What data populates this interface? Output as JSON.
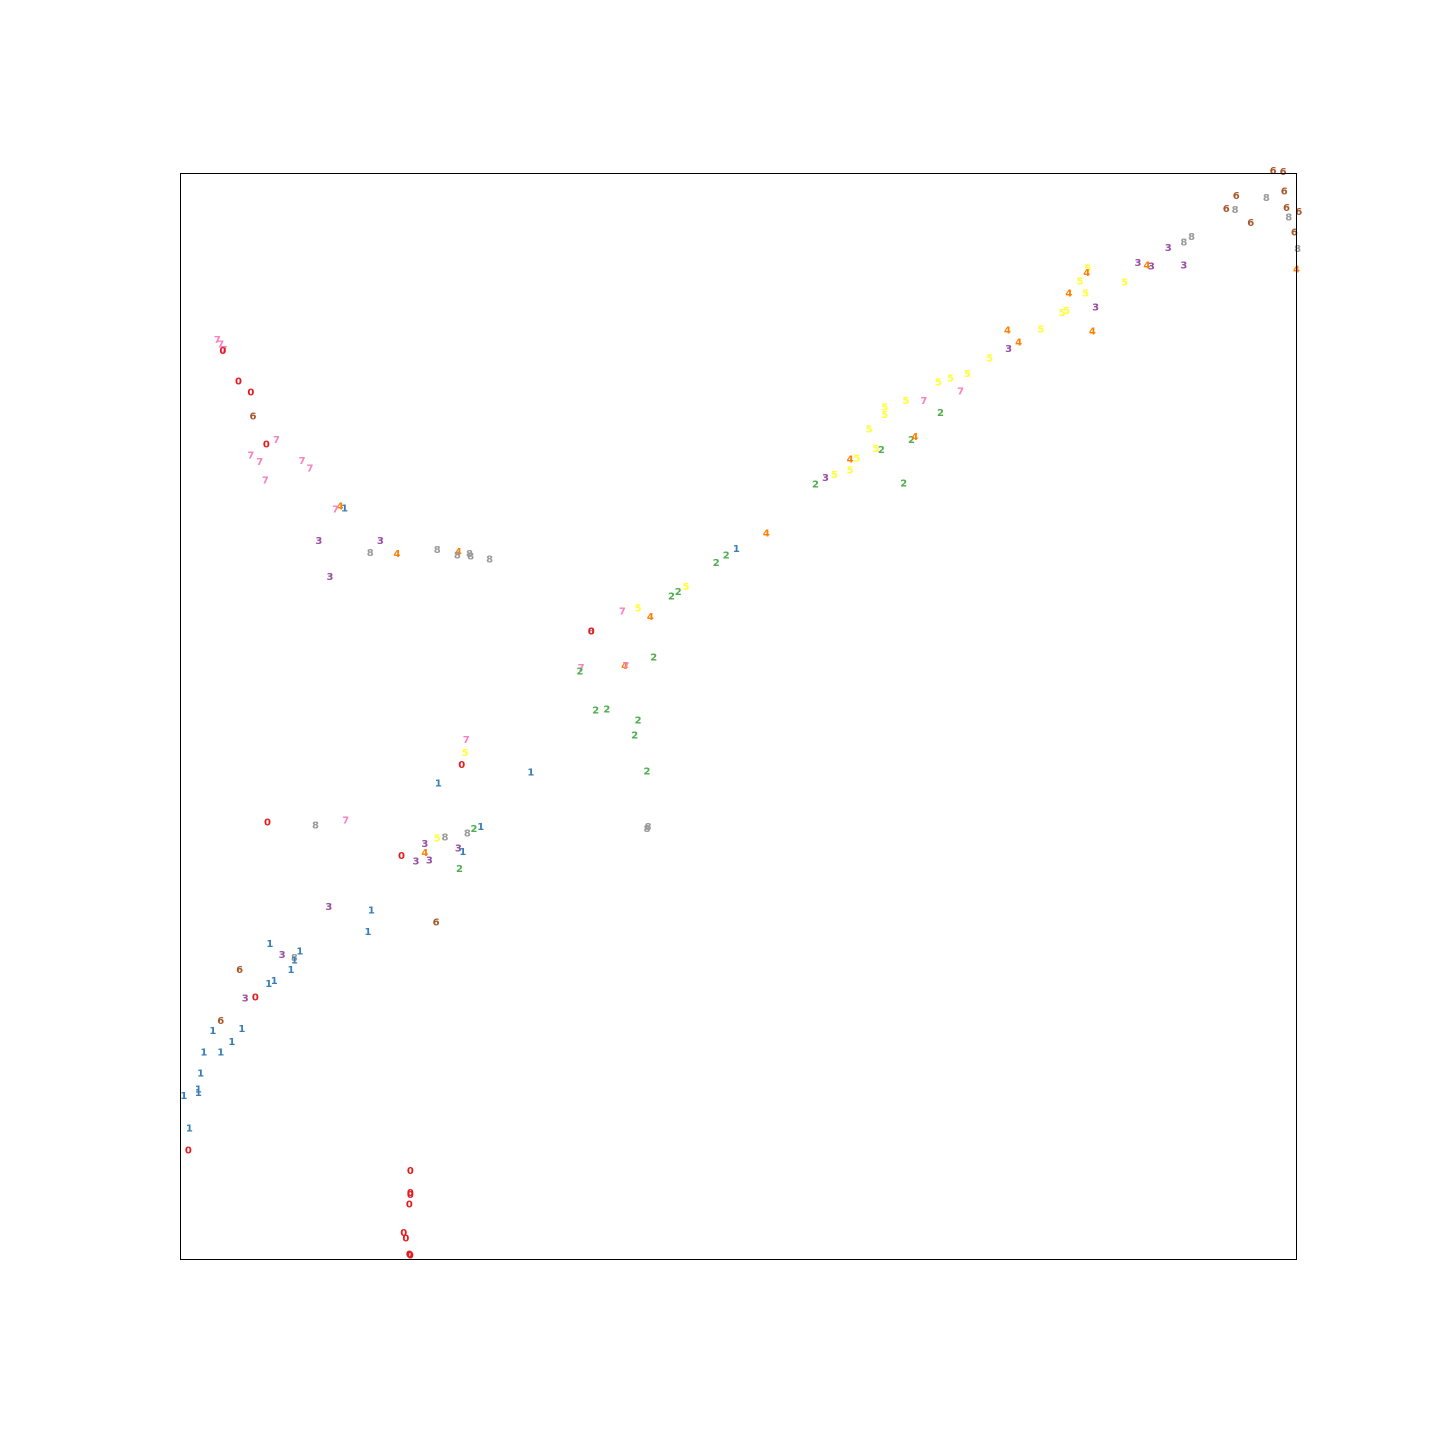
{
  "chart_data": {
    "type": "scatter",
    "title": "",
    "xlabel": "",
    "ylabel": "",
    "xlim": [
      0,
      100
    ],
    "ylim": [
      0,
      100
    ],
    "grid": false,
    "marker": "digit-text",
    "class_colors": {
      "0": "#e41a1c",
      "1": "#377eb8",
      "2": "#4daf4a",
      "3": "#984ea3",
      "4": "#ff7f00",
      "5": "#ffff33",
      "6": "#a65628",
      "7": "#f781bf",
      "8": "#999999"
    },
    "points": [
      {
        "x": 97.9,
        "y": 100.2,
        "label": "6"
      },
      {
        "x": 98.8,
        "y": 100.1,
        "label": "6"
      },
      {
        "x": 98.9,
        "y": 98.3,
        "label": "6"
      },
      {
        "x": 94.6,
        "y": 97.9,
        "label": "6"
      },
      {
        "x": 97.3,
        "y": 97.7,
        "label": "8"
      },
      {
        "x": 99.1,
        "y": 96.8,
        "label": "6"
      },
      {
        "x": 100.2,
        "y": 96.4,
        "label": "6"
      },
      {
        "x": 93.7,
        "y": 96.7,
        "label": "6"
      },
      {
        "x": 94.5,
        "y": 96.6,
        "label": "8"
      },
      {
        "x": 99.3,
        "y": 95.9,
        "label": "8"
      },
      {
        "x": 95.9,
        "y": 95.4,
        "label": "6"
      },
      {
        "x": 99.8,
        "y": 94.5,
        "label": "6"
      },
      {
        "x": 90.6,
        "y": 94.1,
        "label": "8"
      },
      {
        "x": 89.9,
        "y": 93.6,
        "label": "8"
      },
      {
        "x": 88.5,
        "y": 93.1,
        "label": "3"
      },
      {
        "x": 100.1,
        "y": 93.0,
        "label": "8"
      },
      {
        "x": 85.8,
        "y": 91.7,
        "label": "3"
      },
      {
        "x": 86.6,
        "y": 91.5,
        "label": "4"
      },
      {
        "x": 87.0,
        "y": 91.4,
        "label": "3"
      },
      {
        "x": 89.9,
        "y": 91.5,
        "label": "3"
      },
      {
        "x": 100.0,
        "y": 91.1,
        "label": "4"
      },
      {
        "x": 81.3,
        "y": 91.2,
        "label": "5"
      },
      {
        "x": 81.2,
        "y": 90.8,
        "label": "4"
      },
      {
        "x": 80.6,
        "y": 90.0,
        "label": "5"
      },
      {
        "x": 84.6,
        "y": 89.9,
        "label": "5"
      },
      {
        "x": 79.6,
        "y": 88.9,
        "label": "4"
      },
      {
        "x": 81.1,
        "y": 88.9,
        "label": "5"
      },
      {
        "x": 82.0,
        "y": 87.6,
        "label": "3"
      },
      {
        "x": 79.4,
        "y": 87.3,
        "label": "5"
      },
      {
        "x": 79.0,
        "y": 87.1,
        "label": "5"
      },
      {
        "x": 74.1,
        "y": 85.5,
        "label": "4"
      },
      {
        "x": 77.1,
        "y": 85.6,
        "label": "5"
      },
      {
        "x": 81.7,
        "y": 85.4,
        "label": "4"
      },
      {
        "x": 75.1,
        "y": 84.4,
        "label": "4"
      },
      {
        "x": 74.2,
        "y": 83.8,
        "label": "3"
      },
      {
        "x": 72.5,
        "y": 82.9,
        "label": "5"
      },
      {
        "x": 70.5,
        "y": 81.5,
        "label": "5"
      },
      {
        "x": 69.0,
        "y": 81.1,
        "label": "5"
      },
      {
        "x": 67.9,
        "y": 80.7,
        "label": "5"
      },
      {
        "x": 69.9,
        "y": 79.9,
        "label": "7"
      },
      {
        "x": 66.6,
        "y": 79.0,
        "label": "7"
      },
      {
        "x": 65.0,
        "y": 79.0,
        "label": "5"
      },
      {
        "x": 63.1,
        "y": 78.4,
        "label": "5"
      },
      {
        "x": 68.1,
        "y": 77.9,
        "label": "2"
      },
      {
        "x": 63.1,
        "y": 77.7,
        "label": "5"
      },
      {
        "x": 61.7,
        "y": 76.4,
        "label": "5"
      },
      {
        "x": 65.5,
        "y": 75.4,
        "label": "2"
      },
      {
        "x": 65.8,
        "y": 75.7,
        "label": "4"
      },
      {
        "x": 62.3,
        "y": 74.6,
        "label": "5"
      },
      {
        "x": 62.8,
        "y": 74.5,
        "label": "2"
      },
      {
        "x": 60.0,
        "y": 73.6,
        "label": "4"
      },
      {
        "x": 60.6,
        "y": 73.7,
        "label": "5"
      },
      {
        "x": 60.0,
        "y": 72.6,
        "label": "5"
      },
      {
        "x": 64.8,
        "y": 71.4,
        "label": "2"
      },
      {
        "x": 58.6,
        "y": 72.2,
        "label": "5"
      },
      {
        "x": 57.8,
        "y": 71.9,
        "label": "3"
      },
      {
        "x": 56.9,
        "y": 71.3,
        "label": "2"
      },
      {
        "x": 52.5,
        "y": 66.8,
        "label": "4"
      },
      {
        "x": 49.8,
        "y": 65.4,
        "label": "1"
      },
      {
        "x": 48.9,
        "y": 64.8,
        "label": "2"
      },
      {
        "x": 48.0,
        "y": 64.1,
        "label": "2"
      },
      {
        "x": 45.3,
        "y": 61.9,
        "label": "5"
      },
      {
        "x": 44.6,
        "y": 61.4,
        "label": "2"
      },
      {
        "x": 44.0,
        "y": 61.0,
        "label": "2"
      },
      {
        "x": 41.0,
        "y": 59.9,
        "label": "5"
      },
      {
        "x": 39.6,
        "y": 59.6,
        "label": "7"
      },
      {
        "x": 42.1,
        "y": 59.1,
        "label": "4"
      },
      {
        "x": 36.8,
        "y": 57.8,
        "label": "8"
      },
      {
        "x": 36.8,
        "y": 57.8,
        "label": "0"
      },
      {
        "x": 42.4,
        "y": 55.4,
        "label": "2"
      },
      {
        "x": 39.8,
        "y": 54.6,
        "label": "4"
      },
      {
        "x": 39.9,
        "y": 54.6,
        "label": "7"
      },
      {
        "x": 35.9,
        "y": 54.4,
        "label": "7"
      },
      {
        "x": 35.8,
        "y": 54.1,
        "label": "2"
      },
      {
        "x": 37.2,
        "y": 50.5,
        "label": "2"
      },
      {
        "x": 38.2,
        "y": 50.6,
        "label": "2"
      },
      {
        "x": 41.0,
        "y": 49.6,
        "label": "2"
      },
      {
        "x": 40.7,
        "y": 48.2,
        "label": "2"
      },
      {
        "x": 25.6,
        "y": 47.8,
        "label": "7"
      },
      {
        "x": 25.5,
        "y": 46.6,
        "label": "5"
      },
      {
        "x": 25.2,
        "y": 45.5,
        "label": "0"
      },
      {
        "x": 31.4,
        "y": 44.8,
        "label": "1"
      },
      {
        "x": 23.1,
        "y": 43.8,
        "label": "1"
      },
      {
        "x": 41.8,
        "y": 44.9,
        "label": "2"
      },
      {
        "x": 14.8,
        "y": 40.4,
        "label": "7"
      },
      {
        "x": 7.8,
        "y": 40.2,
        "label": "0"
      },
      {
        "x": 12.1,
        "y": 39.9,
        "label": "8"
      },
      {
        "x": 26.9,
        "y": 39.8,
        "label": "1"
      },
      {
        "x": 26.3,
        "y": 39.6,
        "label": "2"
      },
      {
        "x": 41.9,
        "y": 39.8,
        "label": "8"
      },
      {
        "x": 41.8,
        "y": 39.6,
        "label": "8"
      },
      {
        "x": 25.7,
        "y": 39.2,
        "label": "8"
      },
      {
        "x": 23.7,
        "y": 38.8,
        "label": "8"
      },
      {
        "x": 23.0,
        "y": 38.7,
        "label": "5"
      },
      {
        "x": 21.9,
        "y": 38.2,
        "label": "3"
      },
      {
        "x": 24.9,
        "y": 37.8,
        "label": "3"
      },
      {
        "x": 25.3,
        "y": 37.5,
        "label": "1"
      },
      {
        "x": 21.9,
        "y": 37.4,
        "label": "4"
      },
      {
        "x": 19.8,
        "y": 37.1,
        "label": "0"
      },
      {
        "x": 21.1,
        "y": 36.6,
        "label": "3"
      },
      {
        "x": 22.3,
        "y": 36.7,
        "label": "3"
      },
      {
        "x": 25.0,
        "y": 35.9,
        "label": "2"
      },
      {
        "x": 13.3,
        "y": 32.4,
        "label": "3"
      },
      {
        "x": 17.1,
        "y": 32.1,
        "label": "1"
      },
      {
        "x": 22.9,
        "y": 31.0,
        "label": "6"
      },
      {
        "x": 16.8,
        "y": 30.1,
        "label": "1"
      },
      {
        "x": 8.0,
        "y": 29.0,
        "label": "1"
      },
      {
        "x": 10.7,
        "y": 28.3,
        "label": "1"
      },
      {
        "x": 9.1,
        "y": 28.0,
        "label": "3"
      },
      {
        "x": 10.2,
        "y": 27.7,
        "label": "8"
      },
      {
        "x": 10.2,
        "y": 27.5,
        "label": "1"
      },
      {
        "x": 5.3,
        "y": 26.6,
        "label": "6"
      },
      {
        "x": 9.9,
        "y": 26.6,
        "label": "1"
      },
      {
        "x": 8.4,
        "y": 25.6,
        "label": "1"
      },
      {
        "x": 7.9,
        "y": 25.3,
        "label": "1"
      },
      {
        "x": 5.8,
        "y": 24.0,
        "label": "3"
      },
      {
        "x": 6.7,
        "y": 24.1,
        "label": "0"
      },
      {
        "x": 3.6,
        "y": 21.9,
        "label": "6"
      },
      {
        "x": 2.9,
        "y": 21.0,
        "label": "1"
      },
      {
        "x": 5.5,
        "y": 21.2,
        "label": "1"
      },
      {
        "x": 4.6,
        "y": 20.0,
        "label": "1"
      },
      {
        "x": 2.1,
        "y": 19.0,
        "label": "1"
      },
      {
        "x": 3.6,
        "y": 19.0,
        "label": "1"
      },
      {
        "x": 1.8,
        "y": 17.1,
        "label": "1"
      },
      {
        "x": 1.6,
        "y": 15.6,
        "label": "1"
      },
      {
        "x": 1.6,
        "y": 15.3,
        "label": "1"
      },
      {
        "x": 0.3,
        "y": 15.0,
        "label": "1"
      },
      {
        "x": 0.8,
        "y": 12.0,
        "label": "1"
      },
      {
        "x": 0.7,
        "y": 10.0,
        "label": "0"
      },
      {
        "x": 20.6,
        "y": 8.1,
        "label": "0"
      },
      {
        "x": 20.6,
        "y": 6.1,
        "label": "0"
      },
      {
        "x": 20.6,
        "y": 5.9,
        "label": "0"
      },
      {
        "x": 20.5,
        "y": 5.0,
        "label": "0"
      },
      {
        "x": 20.0,
        "y": 2.4,
        "label": "0"
      },
      {
        "x": 20.2,
        "y": 1.9,
        "label": "0"
      },
      {
        "x": 20.5,
        "y": 0.4,
        "label": "0"
      },
      {
        "x": 20.6,
        "y": 0.3,
        "label": "0"
      },
      {
        "x": 3.3,
        "y": 84.6,
        "label": "7"
      },
      {
        "x": 3.6,
        "y": 84.2,
        "label": "7"
      },
      {
        "x": 3.9,
        "y": 83.7,
        "label": "7"
      },
      {
        "x": 3.8,
        "y": 83.6,
        "label": "0"
      },
      {
        "x": 5.2,
        "y": 80.8,
        "label": "0"
      },
      {
        "x": 6.3,
        "y": 79.8,
        "label": "0"
      },
      {
        "x": 6.5,
        "y": 77.6,
        "label": "6"
      },
      {
        "x": 8.6,
        "y": 75.4,
        "label": "7"
      },
      {
        "x": 7.7,
        "y": 75.0,
        "label": "0"
      },
      {
        "x": 6.3,
        "y": 74.0,
        "label": "7"
      },
      {
        "x": 7.1,
        "y": 73.4,
        "label": "7"
      },
      {
        "x": 10.9,
        "y": 73.5,
        "label": "7"
      },
      {
        "x": 11.6,
        "y": 72.8,
        "label": "7"
      },
      {
        "x": 7.6,
        "y": 71.7,
        "label": "7"
      },
      {
        "x": 14.3,
        "y": 69.3,
        "label": "4"
      },
      {
        "x": 13.9,
        "y": 69.0,
        "label": "7"
      },
      {
        "x": 14.7,
        "y": 69.1,
        "label": "1"
      },
      {
        "x": 12.4,
        "y": 66.1,
        "label": "3"
      },
      {
        "x": 17.9,
        "y": 66.1,
        "label": "3"
      },
      {
        "x": 17.0,
        "y": 65.0,
        "label": "8"
      },
      {
        "x": 19.4,
        "y": 64.9,
        "label": "4"
      },
      {
        "x": 23.0,
        "y": 65.3,
        "label": "8"
      },
      {
        "x": 24.9,
        "y": 65.1,
        "label": "4"
      },
      {
        "x": 24.8,
        "y": 64.8,
        "label": "8"
      },
      {
        "x": 25.9,
        "y": 64.9,
        "label": "8"
      },
      {
        "x": 26.0,
        "y": 64.7,
        "label": "8"
      },
      {
        "x": 27.7,
        "y": 64.4,
        "label": "8"
      },
      {
        "x": 13.4,
        "y": 62.8,
        "label": "3"
      }
    ]
  }
}
